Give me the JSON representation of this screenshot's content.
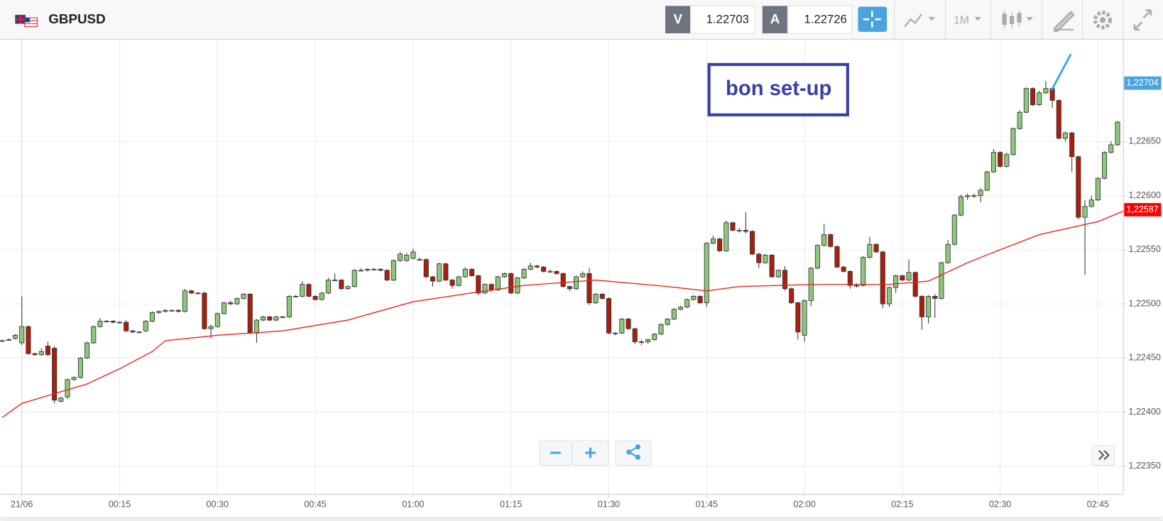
{
  "toolbar": {
    "symbol": "GBPUSD",
    "bid_label": "V",
    "bid": "1.22703",
    "ask_label": "A",
    "ask": "1.22726",
    "timeframe": "1M"
  },
  "chart_data": {
    "type": "candlestick",
    "annotation": "bon set-up",
    "up_color": "#8dc77b",
    "down_color": "#a8200d",
    "grid": true,
    "xlim": [
      -3.3,
      168.9
    ],
    "ylim": [
      1.22324,
      1.227445
    ],
    "xticks": [
      {
        "value": 0,
        "label": "21/06"
      },
      {
        "value": 15,
        "label": "00:15"
      },
      {
        "value": 30,
        "label": "00:30"
      },
      {
        "value": 45,
        "label": "00:45"
      },
      {
        "value": 60,
        "label": "01:00"
      },
      {
        "value": 75,
        "label": "01:15"
      },
      {
        "value": 90,
        "label": "01:30"
      },
      {
        "value": 105,
        "label": "01:45"
      },
      {
        "value": 120,
        "label": "02:00"
      },
      {
        "value": 135,
        "label": "02:15"
      },
      {
        "value": 150,
        "label": "02:30"
      },
      {
        "value": 165,
        "label": "02:45"
      }
    ],
    "yticks": [
      {
        "value": 1.2235,
        "label": "1,22350"
      },
      {
        "value": 1.224,
        "label": "1,22400"
      },
      {
        "value": 1.2245,
        "label": "1,22450"
      },
      {
        "value": 1.225,
        "label": "1,22500"
      },
      {
        "value": 1.2255,
        "label": "1,22550"
      },
      {
        "value": 1.226,
        "label": "1,22600"
      },
      {
        "value": 1.2265,
        "label": "1,22650"
      }
    ],
    "price_tags": [
      {
        "value": 1.22704,
        "label": "1,22704",
        "color": "#4aa3df"
      },
      {
        "value": 1.22587,
        "label": "1,22587",
        "color": "#ff0000"
      }
    ],
    "x": [
      -3,
      -2,
      -1,
      0,
      1,
      2,
      3,
      4,
      5,
      6,
      7,
      8,
      9,
      10,
      11,
      12,
      13,
      14,
      15,
      16,
      17,
      18,
      19,
      20,
      21,
      22,
      23,
      24,
      25,
      26,
      27,
      28,
      29,
      30,
      31,
      32,
      33,
      34,
      35,
      36,
      37,
      38,
      39,
      40,
      41,
      42,
      43,
      44,
      45,
      46,
      47,
      48,
      49,
      50,
      51,
      52,
      53,
      54,
      55,
      56,
      57,
      58,
      59,
      60,
      61,
      62,
      63,
      64,
      65,
      66,
      67,
      68,
      69,
      70,
      71,
      72,
      73,
      74,
      75,
      76,
      77,
      78,
      79,
      80,
      81,
      82,
      83,
      84,
      85,
      86,
      87,
      88,
      89,
      90,
      91,
      92,
      93,
      94,
      95,
      96,
      97,
      98,
      99,
      100,
      101,
      102,
      103,
      104,
      105,
      106,
      107,
      108,
      109,
      110,
      111,
      112,
      113,
      114,
      115,
      116,
      117,
      118,
      119,
      120,
      121,
      122,
      123,
      124,
      125,
      126,
      127,
      128,
      129,
      130,
      131,
      132,
      133,
      134,
      135,
      136,
      137,
      138,
      139,
      140,
      141,
      142,
      143,
      144,
      145,
      146,
      147,
      148,
      149,
      150,
      151,
      152,
      153,
      154,
      155,
      156,
      157,
      158,
      159,
      160,
      161,
      162,
      163,
      164,
      165,
      166,
      167,
      168
    ],
    "candles": [
      [
        1.22466,
        1.22467,
        1.22465,
        1.22466
      ],
      [
        1.22467,
        1.22468,
        1.22466,
        1.22467
      ],
      [
        1.22468,
        1.22472,
        1.22467,
        1.22471
      ],
      [
        1.22464,
        1.22507,
        1.22462,
        1.22479
      ],
      [
        1.22479,
        1.2248,
        1.22453,
        1.22454
      ],
      [
        1.22454,
        1.22455,
        1.22452,
        1.22453
      ],
      [
        1.22453,
        1.22459,
        1.22452,
        1.22456
      ],
      [
        1.22461,
        1.22465,
        1.22452,
        1.22453
      ],
      [
        1.22459,
        1.22461,
        1.22408,
        1.22411
      ],
      [
        1.2241,
        1.22414,
        1.22409,
        1.22413
      ],
      [
        1.22414,
        1.22431,
        1.22412,
        1.2243
      ],
      [
        1.2243,
        1.22433,
        1.22429,
        1.22432
      ],
      [
        1.22432,
        1.22451,
        1.22431,
        1.2245
      ],
      [
        1.2245,
        1.22465,
        1.22449,
        1.22464
      ],
      [
        1.22464,
        1.2248,
        1.22463,
        1.22479
      ],
      [
        1.22479,
        1.22487,
        1.22478,
        1.22484
      ],
      [
        1.22484,
        1.22485,
        1.22483,
        1.22484
      ],
      [
        1.22484,
        1.22485,
        1.22482,
        1.22483
      ],
      [
        1.22483,
        1.22484,
        1.22482,
        1.22483
      ],
      [
        1.22483,
        1.22485,
        1.22474,
        1.22475
      ],
      [
        1.22475,
        1.22476,
        1.22473,
        1.22474
      ],
      [
        1.22474,
        1.22475,
        1.22473,
        1.22474
      ],
      [
        1.22475,
        1.22485,
        1.22474,
        1.22484
      ],
      [
        1.22484,
        1.22493,
        1.22483,
        1.22492
      ],
      [
        1.22492,
        1.22494,
        1.22491,
        1.22493
      ],
      [
        1.22493,
        1.22495,
        1.22492,
        1.22494
      ],
      [
        1.22494,
        1.22495,
        1.22493,
        1.22494
      ],
      [
        1.22494,
        1.22495,
        1.22492,
        1.22493
      ],
      [
        1.22493,
        1.22514,
        1.22492,
        1.22512
      ],
      [
        1.22512,
        1.22513,
        1.22509,
        1.2251
      ],
      [
        1.2251,
        1.22511,
        1.22509,
        1.2251
      ],
      [
        1.2251,
        1.22511,
        1.22476,
        1.22477
      ],
      [
        1.22477,
        1.22481,
        1.22468,
        1.22479
      ],
      [
        1.22479,
        1.22492,
        1.22478,
        1.22491
      ],
      [
        1.22491,
        1.22502,
        1.2249,
        1.22501
      ],
      [
        1.22501,
        1.22503,
        1.22499,
        1.225
      ],
      [
        1.225,
        1.22506,
        1.22499,
        1.22505
      ],
      [
        1.22505,
        1.2251,
        1.22504,
        1.22509
      ],
      [
        1.22509,
        1.2251,
        1.22472,
        1.22473
      ],
      [
        1.22473,
        1.22486,
        1.22464,
        1.22485
      ],
      [
        1.22485,
        1.22489,
        1.22484,
        1.22488
      ],
      [
        1.22488,
        1.22489,
        1.22484,
        1.22485
      ],
      [
        1.22485,
        1.22489,
        1.22484,
        1.22488
      ],
      [
        1.22488,
        1.22489,
        1.22487,
        1.22488
      ],
      [
        1.22488,
        1.22508,
        1.22487,
        1.22507
      ],
      [
        1.22507,
        1.22508,
        1.22506,
        1.22507
      ],
      [
        1.22507,
        1.22521,
        1.22506,
        1.22518
      ],
      [
        1.22518,
        1.22519,
        1.22506,
        1.22507
      ],
      [
        1.22507,
        1.22508,
        1.22503,
        1.22504
      ],
      [
        1.22504,
        1.22511,
        1.22503,
        1.2251
      ],
      [
        1.2251,
        1.22524,
        1.22509,
        1.22522
      ],
      [
        1.22522,
        1.22528,
        1.22521,
        1.22522
      ],
      [
        1.22522,
        1.22523,
        1.22513,
        1.22514
      ],
      [
        1.22514,
        1.22517,
        1.22513,
        1.22516
      ],
      [
        1.22516,
        1.22532,
        1.22515,
        1.22531
      ],
      [
        1.22531,
        1.22533,
        1.2253,
        1.22531
      ],
      [
        1.22531,
        1.22533,
        1.2253,
        1.22532
      ],
      [
        1.22532,
        1.22533,
        1.22531,
        1.22532
      ],
      [
        1.22532,
        1.22533,
        1.2253,
        1.22531
      ],
      [
        1.22531,
        1.22532,
        1.22521,
        1.22522
      ],
      [
        1.22522,
        1.22541,
        1.22521,
        1.2254
      ],
      [
        1.2254,
        1.22548,
        1.22539,
        1.22546
      ],
      [
        1.2254,
        1.22547,
        1.22539,
        1.22545
      ],
      [
        1.22542,
        1.22551,
        1.22541,
        1.22548
      ],
      [
        1.22541,
        1.22543,
        1.2254,
        1.22541
      ],
      [
        1.22541,
        1.22542,
        1.22524,
        1.22525
      ],
      [
        1.22525,
        1.22526,
        1.22516,
        1.22521
      ],
      [
        1.22521,
        1.22538,
        1.2252,
        1.22537
      ],
      [
        1.22537,
        1.22538,
        1.22521,
        1.22522
      ],
      [
        1.22522,
        1.22523,
        1.22514,
        1.22517
      ],
      [
        1.22517,
        1.22526,
        1.22516,
        1.22525
      ],
      [
        1.22525,
        1.22534,
        1.22524,
        1.22532
      ],
      [
        1.22532,
        1.22533,
        1.22525,
        1.22526
      ],
      [
        1.22526,
        1.22527,
        1.22508,
        1.2251
      ],
      [
        1.2251,
        1.22519,
        1.22509,
        1.22518
      ],
      [
        1.22518,
        1.22519,
        1.22511,
        1.22513
      ],
      [
        1.22513,
        1.22526,
        1.22512,
        1.22525
      ],
      [
        1.22525,
        1.22529,
        1.22524,
        1.22528
      ],
      [
        1.22528,
        1.22529,
        1.22509,
        1.2251
      ],
      [
        1.2251,
        1.22525,
        1.22509,
        1.22524
      ],
      [
        1.22524,
        1.22533,
        1.22523,
        1.22532
      ],
      [
        1.22532,
        1.22538,
        1.22531,
        1.22535
      ],
      [
        1.22535,
        1.22536,
        1.22533,
        1.22534
      ],
      [
        1.22534,
        1.22535,
        1.22529,
        1.2253
      ],
      [
        1.2253,
        1.22532,
        1.22529,
        1.2253
      ],
      [
        1.2253,
        1.22531,
        1.22527,
        1.22528
      ],
      [
        1.22528,
        1.22529,
        1.22515,
        1.22516
      ],
      [
        1.22516,
        1.22517,
        1.22512,
        1.22514
      ],
      [
        1.22514,
        1.22526,
        1.22513,
        1.22525
      ],
      [
        1.22525,
        1.2253,
        1.22524,
        1.22528
      ],
      [
        1.22528,
        1.22533,
        1.22499,
        1.22501
      ],
      [
        1.22501,
        1.2251,
        1.225,
        1.22509
      ],
      [
        1.22509,
        1.2251,
        1.22504,
        1.22505
      ],
      [
        1.22505,
        1.22506,
        1.22472,
        1.22473
      ],
      [
        1.22473,
        1.22474,
        1.22471,
        1.22473
      ],
      [
        1.22473,
        1.22487,
        1.22472,
        1.22486
      ],
      [
        1.22486,
        1.22487,
        1.22476,
        1.22477
      ],
      [
        1.22477,
        1.22478,
        1.22463,
        1.22465
      ],
      [
        1.22465,
        1.22467,
        1.22462,
        1.22465
      ],
      [
        1.22465,
        1.22468,
        1.22463,
        1.22467
      ],
      [
        1.22467,
        1.22473,
        1.22466,
        1.22472
      ],
      [
        1.22472,
        1.22482,
        1.22471,
        1.22481
      ],
      [
        1.22481,
        1.22487,
        1.2248,
        1.22486
      ],
      [
        1.22486,
        1.22496,
        1.22485,
        1.22495
      ],
      [
        1.22495,
        1.22498,
        1.22494,
        1.22497
      ],
      [
        1.22497,
        1.22505,
        1.22496,
        1.22504
      ],
      [
        1.22504,
        1.22508,
        1.22503,
        1.22507
      ],
      [
        1.22507,
        1.22508,
        1.225,
        1.22501
      ],
      [
        1.22501,
        1.22557,
        1.22497,
        1.22556
      ],
      [
        1.22556,
        1.22563,
        1.22555,
        1.2256
      ],
      [
        1.2256,
        1.22561,
        1.22548,
        1.22549
      ],
      [
        1.22549,
        1.22577,
        1.22548,
        1.22575
      ],
      [
        1.22575,
        1.22576,
        1.22567,
        1.22568
      ],
      [
        1.22568,
        1.2257,
        1.22566,
        1.22568
      ],
      [
        1.22568,
        1.22585,
        1.22565,
        1.22567
      ],
      [
        1.22567,
        1.22568,
        1.22545,
        1.22546
      ],
      [
        1.22546,
        1.22547,
        1.22533,
        1.22538
      ],
      [
        1.22538,
        1.22546,
        1.22537,
        1.22545
      ],
      [
        1.22545,
        1.22546,
        1.22524,
        1.22525
      ],
      [
        1.22525,
        1.22532,
        1.22524,
        1.22531
      ],
      [
        1.22531,
        1.22535,
        1.22512,
        1.22514
      ],
      [
        1.22514,
        1.22515,
        1.225,
        1.22501
      ],
      [
        1.22501,
        1.22502,
        1.22467,
        1.22474
      ],
      [
        1.22471,
        1.22504,
        1.22465,
        1.22503
      ],
      [
        1.22503,
        1.22534,
        1.22498,
        1.22533
      ],
      [
        1.22533,
        1.22555,
        1.22532,
        1.22554
      ],
      [
        1.22554,
        1.22574,
        1.22553,
        1.22564
      ],
      [
        1.22564,
        1.22565,
        1.22552,
        1.22553
      ],
      [
        1.22553,
        1.22554,
        1.22533,
        1.22534
      ],
      [
        1.22534,
        1.22535,
        1.22529,
        1.2253
      ],
      [
        1.2253,
        1.22531,
        1.22514,
        1.22517
      ],
      [
        1.22517,
        1.22519,
        1.22515,
        1.22517
      ],
      [
        1.22517,
        1.22544,
        1.22516,
        1.22543
      ],
      [
        1.22543,
        1.22562,
        1.22542,
        1.22555
      ],
      [
        1.22555,
        1.22556,
        1.22547,
        1.22548
      ],
      [
        1.22548,
        1.22549,
        1.22496,
        1.225
      ],
      [
        1.225,
        1.22516,
        1.22497,
        1.22515
      ],
      [
        1.22515,
        1.22527,
        1.2251,
        1.22526
      ],
      [
        1.22526,
        1.22527,
        1.22521,
        1.22522
      ],
      [
        1.22522,
        1.22541,
        1.22521,
        1.22529
      ],
      [
        1.22529,
        1.2253,
        1.22506,
        1.22507
      ],
      [
        1.22507,
        1.22508,
        1.22476,
        1.22488
      ],
      [
        1.22488,
        1.22508,
        1.22482,
        1.22507
      ],
      [
        1.22507,
        1.22509,
        1.22487,
        1.22505
      ],
      [
        1.22505,
        1.22539,
        1.22504,
        1.22538
      ],
      [
        1.22538,
        1.22559,
        1.22537,
        1.22555
      ],
      [
        1.22555,
        1.22583,
        1.22554,
        1.22582
      ],
      [
        1.22582,
        1.22601,
        1.22581,
        1.22599
      ],
      [
        1.22599,
        1.22602,
        1.22596,
        1.226
      ],
      [
        1.226,
        1.22602,
        1.22598,
        1.226
      ],
      [
        1.226,
        1.22607,
        1.22594,
        1.22605
      ],
      [
        1.22605,
        1.22623,
        1.22604,
        1.22622
      ],
      [
        1.22622,
        1.22643,
        1.22621,
        1.2264
      ],
      [
        1.2264,
        1.22641,
        1.22626,
        1.22627
      ],
      [
        1.22627,
        1.2264,
        1.22626,
        1.22638
      ],
      [
        1.22638,
        1.22663,
        1.22637,
        1.22662
      ],
      [
        1.22662,
        1.22679,
        1.22661,
        1.22677
      ],
      [
        1.22677,
        1.227,
        1.22676,
        1.22699
      ],
      [
        1.22699,
        1.227,
        1.22683,
        1.22684
      ],
      [
        1.22684,
        1.22697,
        1.22683,
        1.22695
      ],
      [
        1.22695,
        1.22706,
        1.22694,
        1.22699
      ],
      [
        1.22699,
        1.227,
        1.22681,
        1.22688
      ],
      [
        1.22688,
        1.22689,
        1.22652,
        1.22653
      ],
      [
        1.22653,
        1.22659,
        1.2265,
        1.22658
      ],
      [
        1.22658,
        1.22659,
        1.22622,
        1.22636
      ],
      [
        1.22636,
        1.22637,
        1.22578,
        1.2258
      ],
      [
        1.2258,
        1.22596,
        1.22527,
        1.2259
      ],
      [
        1.2259,
        1.226,
        1.22589,
        1.22596
      ],
      [
        1.22596,
        1.22617,
        1.22595,
        1.22616
      ],
      [
        1.22616,
        1.22641,
        1.22615,
        1.2264
      ],
      [
        1.2264,
        1.2265,
        1.22639,
        1.22647
      ],
      [
        1.22647,
        1.22669,
        1.22646,
        1.22668
      ]
    ],
    "line": {
      "color": "#e8231c",
      "x": [
        -3,
        0,
        5,
        10,
        15,
        20,
        22,
        30,
        40,
        50,
        60,
        70,
        77,
        88,
        99,
        105,
        110,
        122,
        133,
        139,
        145,
        150,
        156,
        162,
        165,
        169
      ],
      "values": [
        1.22395,
        1.22408,
        1.22417,
        1.22426,
        1.2244,
        1.22456,
        1.22466,
        1.22471,
        1.22475,
        1.22485,
        1.22502,
        1.22511,
        1.22517,
        1.22522,
        1.22516,
        1.22512,
        1.22516,
        1.22518,
        1.22518,
        1.22521,
        1.22538,
        1.2255,
        1.22564,
        1.22572,
        1.22576,
        1.22586
      ]
    }
  }
}
